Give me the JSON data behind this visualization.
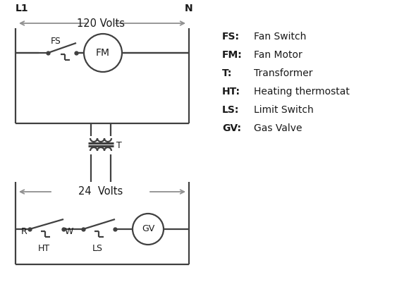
{
  "bg_color": "#ffffff",
  "line_color": "#404040",
  "arrow_color": "#909090",
  "text_color": "#1a1a1a",
  "figsize": [
    5.9,
    4.0
  ],
  "dpi": 100,
  "legend": [
    [
      "FS:",
      "Fan Switch"
    ],
    [
      "FM:",
      "Fan Motor"
    ],
    [
      "T:",
      "Transformer"
    ],
    [
      "HT:",
      "Heating thermostat"
    ],
    [
      "LS:",
      "Limit Switch"
    ],
    [
      "GV:",
      "Gas Valve"
    ]
  ]
}
